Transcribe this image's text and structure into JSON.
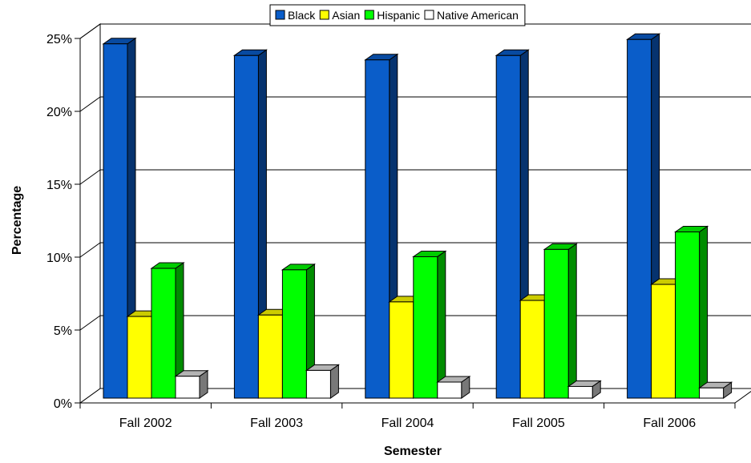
{
  "chart_data": {
    "type": "bar",
    "title": "",
    "xlabel": "Semester",
    "ylabel": "Percentage",
    "categories": [
      "Fall 2002",
      "Fall 2003",
      "Fall 2004",
      "Fall 2005",
      "Fall 2006"
    ],
    "series": [
      {
        "name": "Black",
        "color": "#0A5DC9",
        "values": [
          24.3,
          23.5,
          23.2,
          23.5,
          24.6
        ]
      },
      {
        "name": "Asian",
        "color": "#FFFF00",
        "values": [
          5.6,
          5.7,
          6.6,
          6.7,
          7.8
        ]
      },
      {
        "name": "Hispanic",
        "color": "#00FF00",
        "values": [
          8.9,
          8.8,
          9.7,
          10.2,
          11.4
        ]
      },
      {
        "name": "Native American",
        "color": "#FFFFFF",
        "values": [
          1.5,
          1.9,
          1.1,
          0.8,
          0.7
        ]
      }
    ],
    "yticks": [
      "0%",
      "5%",
      "10%",
      "15%",
      "20%",
      "25%"
    ],
    "ylim": [
      0,
      25
    ],
    "grid": true,
    "legend": "top"
  }
}
